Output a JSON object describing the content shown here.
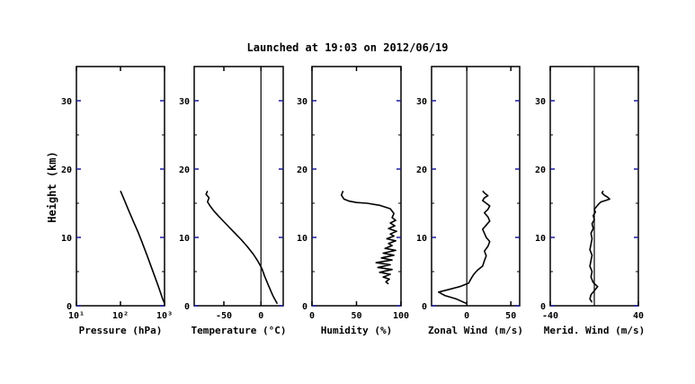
{
  "title": "Launched at 19:03 on 2012/06/19",
  "shared_ylabel": "Height (km)",
  "colors": {
    "axes": "#000000",
    "tick_accent": "#1a1a9a",
    "profile": "#000000",
    "profile_blue": "#2a2aa0"
  },
  "chart_data": [
    {
      "type": "line",
      "id": "pressure",
      "xlabel": "Pressure (hPa)",
      "xscale": "log",
      "xlim": [
        10,
        1000
      ],
      "xticks": [
        10,
        100,
        1000
      ],
      "xticklabels": [
        "10¹",
        "10²",
        "10³"
      ],
      "ylim": [
        0,
        35
      ],
      "yticks": [
        0,
        10,
        20,
        30
      ],
      "yticklabels": [
        "0",
        "10",
        "20",
        "30"
      ],
      "zero_line": null,
      "series": [
        {
          "x": [
            1010,
            905,
            800,
            700,
            600,
            500,
            400,
            300,
            250,
            200,
            150,
            120,
            100
          ],
          "y": [
            0.3,
            1.0,
            2.0,
            3.1,
            4.3,
            5.7,
            7.4,
            9.5,
            10.8,
            12.2,
            14.1,
            15.6,
            16.8
          ]
        }
      ]
    },
    {
      "type": "line",
      "id": "temperature",
      "xlabel": "Temperature (°C)",
      "xlim": [
        -90,
        30
      ],
      "xticks": [
        -50,
        0
      ],
      "xticklabels": [
        "-50",
        "0"
      ],
      "ylim": [
        0,
        35
      ],
      "yticks": [
        0,
        10,
        20,
        30
      ],
      "yticklabels": [
        "0",
        "10",
        "20",
        "30"
      ],
      "zero_line": 0,
      "series": [
        {
          "x": [
            22,
            16,
            10,
            5,
            1,
            -4,
            -10,
            -18,
            -26,
            -34,
            -42,
            -50,
            -57,
            -63,
            -68,
            -72,
            -70,
            -74,
            -72
          ],
          "y": [
            0.3,
            1.5,
            3.0,
            4.3,
            5.5,
            6.5,
            7.5,
            8.6,
            9.6,
            10.5,
            11.4,
            12.3,
            13.1,
            13.8,
            14.5,
            15.2,
            15.8,
            16.3,
            16.8
          ]
        }
      ]
    },
    {
      "type": "line",
      "id": "humidity",
      "xlabel": "Humidity (%)",
      "xlim": [
        0,
        100
      ],
      "xticks": [
        0,
        50,
        100
      ],
      "xticklabels": [
        "0",
        "50",
        "100"
      ],
      "ylim": [
        0,
        35
      ],
      "yticks": [
        0,
        10,
        20,
        30
      ],
      "yticklabels": [
        "0",
        "10",
        "20",
        "30"
      ],
      "zero_line": null,
      "series": [
        {
          "x": [
            86,
            83,
            87,
            80,
            88,
            76,
            90,
            74,
            88,
            72,
            90,
            78,
            92,
            80,
            94,
            82,
            90,
            86,
            94,
            84,
            92,
            88,
            95,
            86,
            93,
            88,
            94,
            90,
            92,
            88,
            76,
            62,
            50,
            42,
            36,
            33,
            35
          ],
          "y": [
            3.2,
            3.5,
            3.9,
            4.2,
            4.6,
            4.9,
            5.3,
            5.6,
            6.0,
            6.3,
            6.7,
            7.0,
            7.4,
            7.7,
            8.1,
            8.4,
            8.8,
            9.1,
            9.5,
            9.8,
            10.2,
            10.5,
            10.9,
            11.3,
            11.7,
            12.1,
            12.5,
            12.9,
            13.5,
            14.2,
            14.7,
            15.0,
            15.1,
            15.3,
            15.6,
            16.2,
            16.8
          ]
        }
      ]
    },
    {
      "type": "line",
      "id": "zonal-wind",
      "xlabel": "Zonal Wind (m/s)",
      "xlim": [
        -40,
        60
      ],
      "xticks": [
        0,
        50
      ],
      "xticklabels": [
        "0",
        "50"
      ],
      "ylim": [
        0,
        35
      ],
      "yticks": [
        0,
        10,
        20,
        30
      ],
      "yticklabels": [
        "0",
        "10",
        "20",
        "30"
      ],
      "zero_line": 0,
      "series": [
        {
          "x": [
            0,
            -12,
            -25,
            -32,
            -20,
            -8,
            2,
            5,
            8,
            12,
            18,
            20,
            22,
            20,
            24,
            26,
            22,
            20,
            18,
            22,
            26,
            24,
            20,
            24,
            26,
            22,
            18,
            20,
            24,
            20,
            18
          ],
          "y": [
            0.3,
            1.0,
            1.5,
            2.0,
            2.4,
            2.8,
            3.3,
            4.0,
            4.6,
            5.2,
            5.8,
            6.6,
            7.3,
            8.0,
            8.7,
            9.4,
            10.0,
            10.6,
            11.2,
            11.8,
            12.4,
            13.0,
            13.6,
            14.1,
            14.6,
            15.0,
            15.4,
            15.8,
            16.1,
            16.5,
            16.8
          ]
        }
      ]
    },
    {
      "type": "line",
      "id": "meridional-wind",
      "xlabel": "Merid. Wind (m/s)",
      "xlim": [
        -40,
        40
      ],
      "xticks": [
        -40,
        40
      ],
      "xticklabels": [
        "-40",
        "40"
      ],
      "ylim": [
        0,
        35
      ],
      "yticks": [
        0,
        10,
        20,
        30
      ],
      "yticklabels": [
        "0",
        "10",
        "20",
        "30"
      ],
      "zero_line": 0,
      "series": [
        {
          "x": [
            -2,
            -4,
            -3,
            0,
            3,
            -1,
            -3,
            -2,
            -4,
            -3,
            -2,
            -4,
            -3,
            -2,
            -3,
            -1,
            -2,
            0,
            -1,
            1,
            0,
            2,
            4,
            6,
            10,
            14,
            12,
            9,
            7,
            8
          ],
          "y": [
            0.5,
            1.0,
            1.6,
            2.2,
            2.8,
            3.4,
            4.2,
            5.0,
            5.8,
            6.6,
            7.4,
            8.2,
            9.0,
            9.8,
            10.6,
            11.3,
            12.0,
            12.6,
            13.2,
            13.7,
            14.1,
            14.5,
            14.9,
            15.2,
            15.4,
            15.6,
            15.9,
            16.2,
            16.5,
            16.8
          ]
        }
      ]
    }
  ]
}
